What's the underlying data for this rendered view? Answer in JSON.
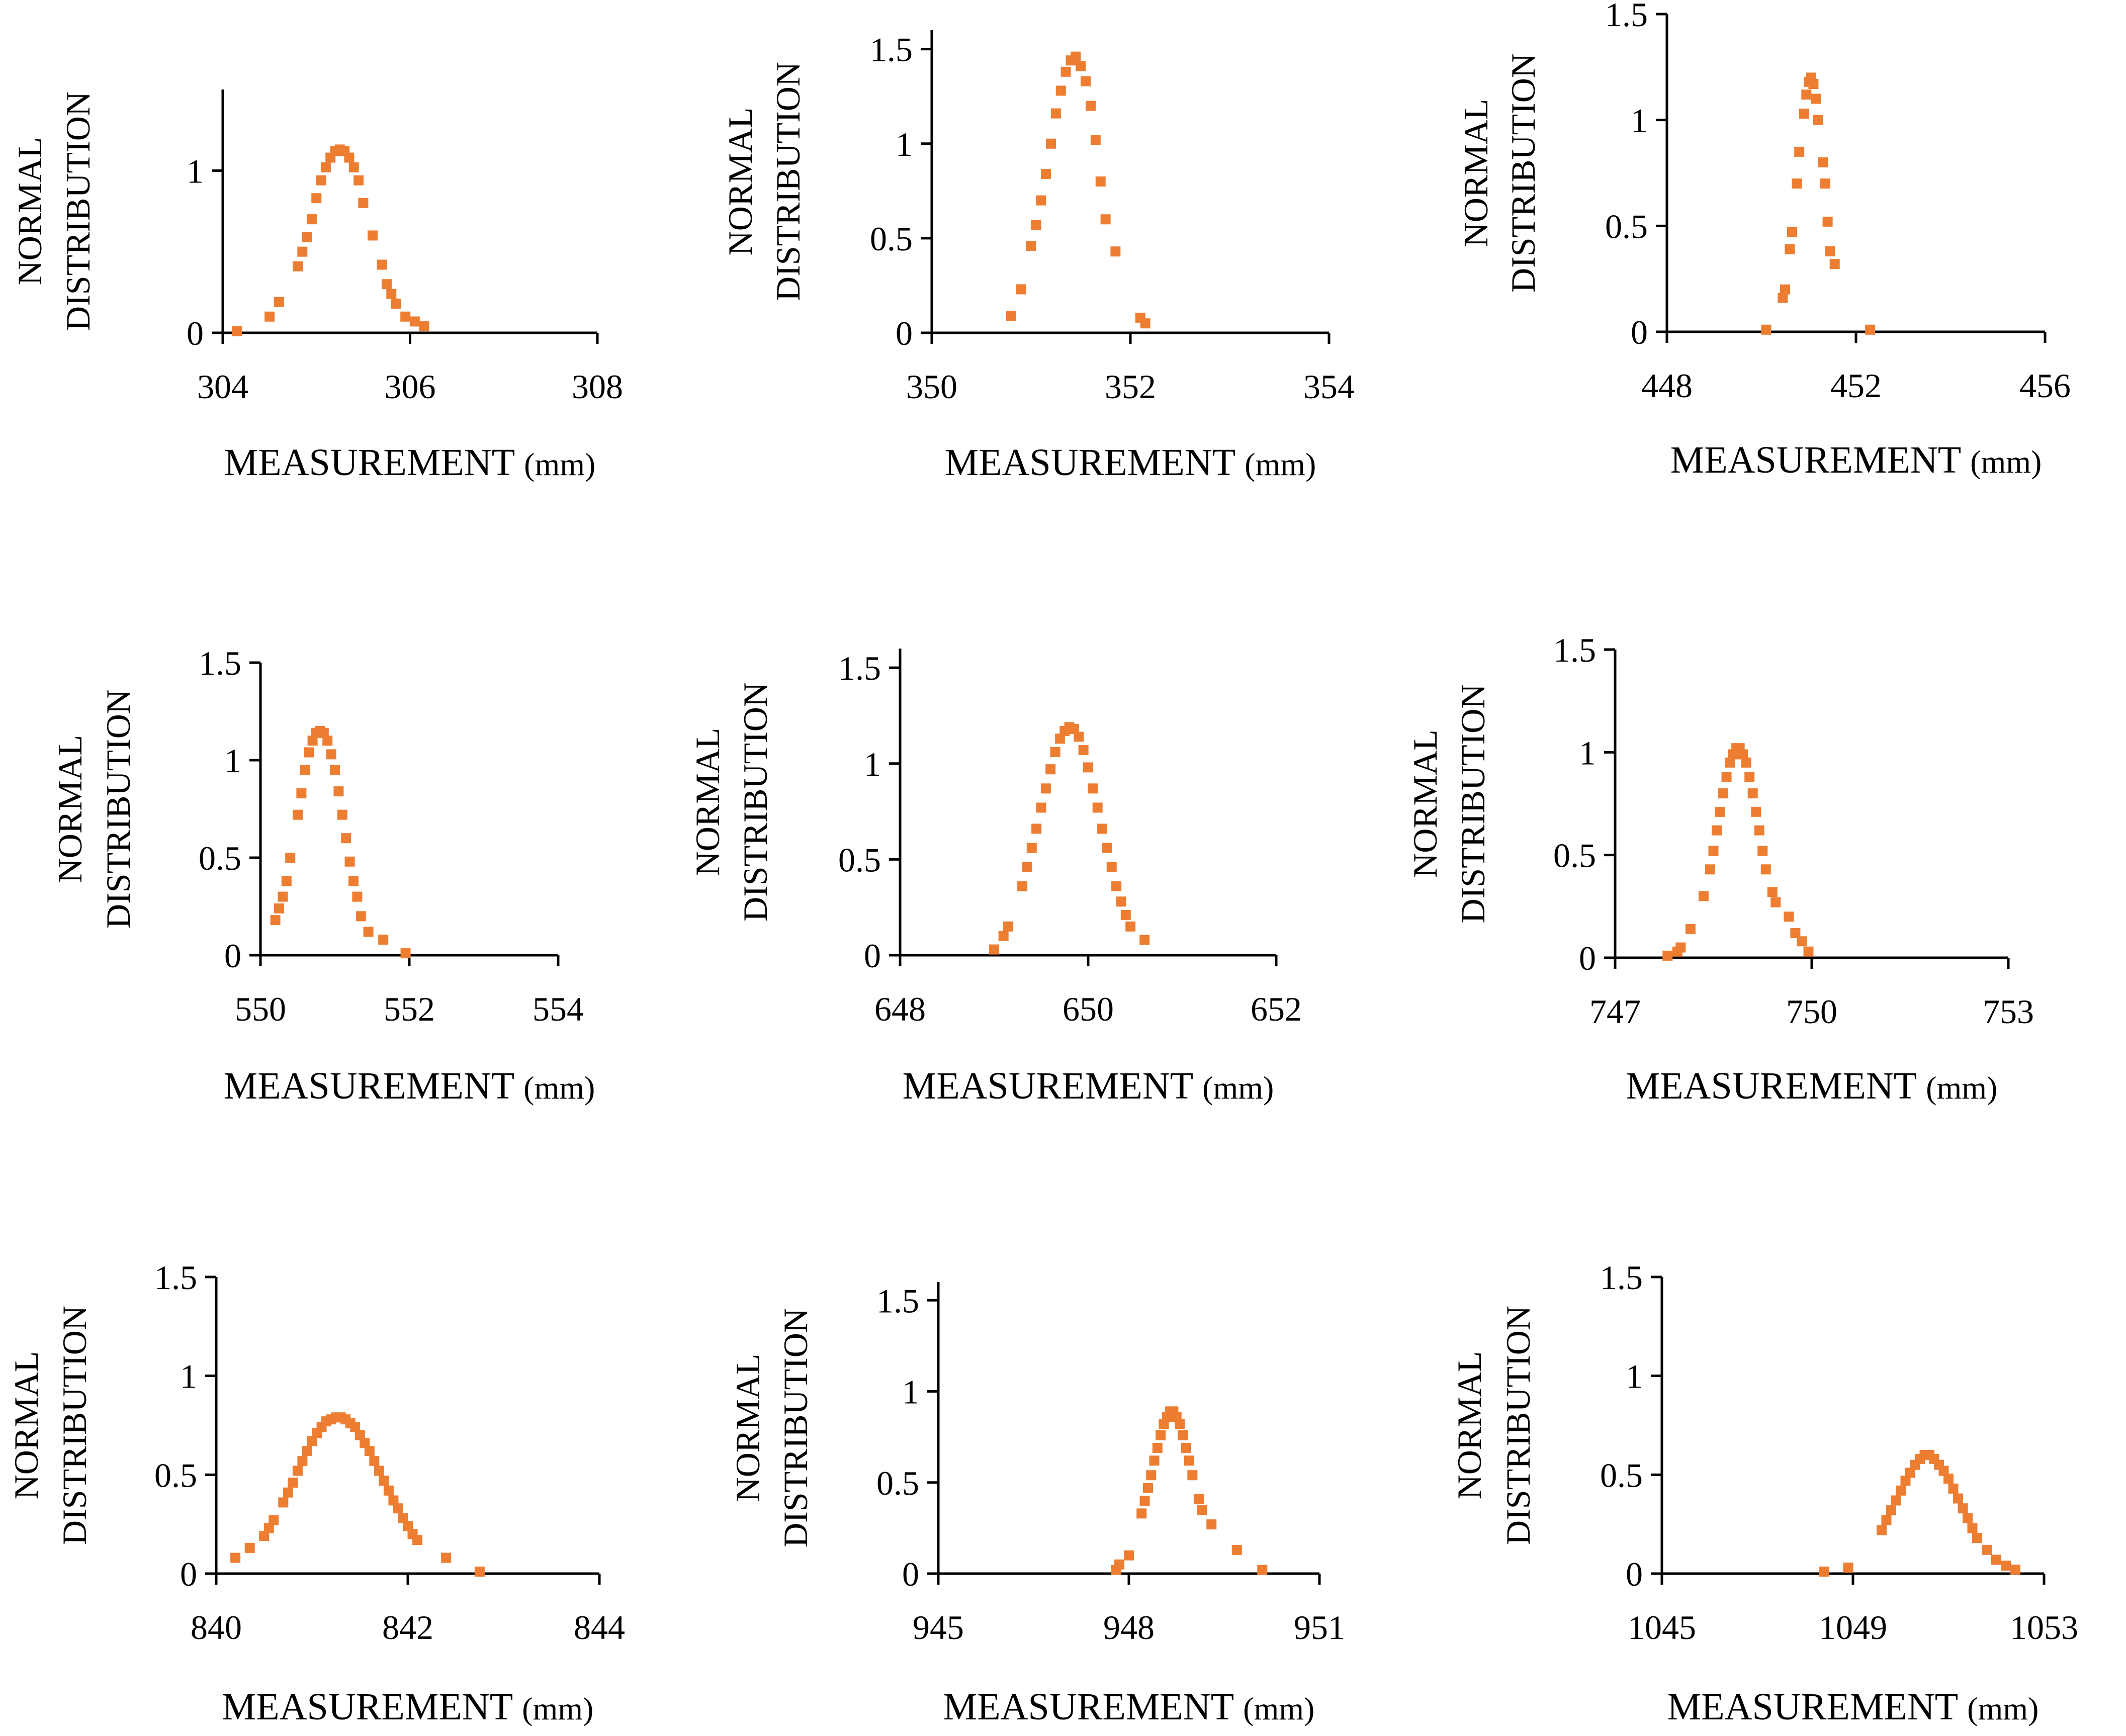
{
  "marker_color": "#ED7D31",
  "chart_data": [
    {
      "type": "scatter",
      "xlabel": "MEASUREMENT",
      "xunit": "(mm)",
      "ylabel": [
        "NORMAL",
        "DISTRIBUTION"
      ],
      "xlim": [
        304,
        308
      ],
      "xticks": [
        304,
        306,
        308
      ],
      "xtick_labels": [
        "304",
        "306",
        "308"
      ],
      "ylim": [
        0,
        1.5
      ],
      "yticks": [
        0,
        1
      ],
      "ytick_labels": [
        "0",
        "1"
      ],
      "x": [
        304.15,
        304.5,
        304.6,
        304.8,
        304.85,
        304.9,
        304.95,
        305.0,
        305.05,
        305.1,
        305.15,
        305.2,
        305.25,
        305.3,
        305.35,
        305.4,
        305.45,
        305.5,
        305.6,
        305.7,
        305.75,
        305.8,
        305.85,
        305.95,
        306.05,
        306.15
      ],
      "y": [
        0.01,
        0.1,
        0.19,
        0.41,
        0.5,
        0.59,
        0.7,
        0.83,
        0.94,
        1.02,
        1.08,
        1.12,
        1.13,
        1.12,
        1.08,
        1.02,
        0.94,
        0.8,
        0.6,
        0.42,
        0.3,
        0.24,
        0.18,
        0.1,
        0.07,
        0.04
      ]
    },
    {
      "type": "scatter",
      "xlabel": "MEASUREMENT",
      "xunit": "(mm)",
      "ylabel": [
        "NORMAL",
        "DISTRIBUTION"
      ],
      "xlim": [
        350,
        354
      ],
      "xticks": [
        350,
        352,
        354
      ],
      "xtick_labels": [
        "350",
        "352",
        "354"
      ],
      "ylim": [
        0,
        1.6
      ],
      "yticks": [
        0,
        0.5,
        1,
        1.5
      ],
      "ytick_labels": [
        "0",
        "0.5",
        "1",
        "1.5"
      ],
      "x": [
        350.8,
        350.9,
        351.0,
        351.05,
        351.1,
        351.15,
        351.2,
        351.25,
        351.3,
        351.35,
        351.4,
        351.45,
        351.5,
        351.55,
        351.6,
        351.65,
        351.7,
        351.75,
        351.85,
        352.1,
        352.15
      ],
      "y": [
        0.09,
        0.23,
        0.46,
        0.57,
        0.7,
        0.84,
        1.0,
        1.16,
        1.28,
        1.38,
        1.44,
        1.46,
        1.41,
        1.33,
        1.2,
        1.02,
        0.8,
        0.6,
        0.43,
        0.08,
        0.05
      ]
    },
    {
      "type": "scatter",
      "xlabel": "MEASUREMENT",
      "xunit": "(mm)",
      "ylabel": [
        "NORMAL",
        "DISTRIBUTION"
      ],
      "xlim": [
        448,
        456
      ],
      "xticks": [
        448,
        452,
        456
      ],
      "xtick_labels": [
        "448",
        "452",
        "456"
      ],
      "ylim": [
        0,
        1.5
      ],
      "yticks": [
        0,
        0.5,
        1,
        1.5
      ],
      "ytick_labels": [
        "0",
        "0.5",
        "1",
        "1.5"
      ],
      "x": [
        450.1,
        450.45,
        450.5,
        450.6,
        450.65,
        450.75,
        450.8,
        450.9,
        450.95,
        451.0,
        451.05,
        451.1,
        451.15,
        451.2,
        451.3,
        451.35,
        451.4,
        451.45,
        451.55,
        452.3
      ],
      "y": [
        0.01,
        0.16,
        0.2,
        0.39,
        0.47,
        0.7,
        0.85,
        1.03,
        1.12,
        1.18,
        1.2,
        1.17,
        1.1,
        1.0,
        0.8,
        0.7,
        0.52,
        0.38,
        0.32,
        0.01
      ]
    },
    {
      "type": "scatter",
      "xlabel": "MEASUREMENT",
      "xunit": "(mm)",
      "ylabel": [
        "NORMAL",
        "DISTRIBUTION"
      ],
      "xlim": [
        550,
        554
      ],
      "xticks": [
        550,
        552,
        554
      ],
      "xtick_labels": [
        "550",
        "552",
        "554"
      ],
      "ylim": [
        0,
        1.5
      ],
      "yticks": [
        0,
        0.5,
        1,
        1.5
      ],
      "ytick_labels": [
        "0",
        "0.5",
        "1",
        "1.5"
      ],
      "x": [
        550.2,
        550.25,
        550.3,
        550.35,
        550.4,
        550.5,
        550.55,
        550.6,
        550.65,
        550.7,
        550.75,
        550.8,
        550.85,
        550.9,
        550.95,
        551.0,
        551.05,
        551.1,
        551.15,
        551.2,
        551.25,
        551.3,
        551.35,
        551.45,
        551.65,
        551.95
      ],
      "y": [
        0.18,
        0.24,
        0.3,
        0.38,
        0.5,
        0.72,
        0.83,
        0.95,
        1.04,
        1.1,
        1.14,
        1.15,
        1.14,
        1.1,
        1.03,
        0.95,
        0.84,
        0.72,
        0.6,
        0.48,
        0.38,
        0.3,
        0.2,
        0.12,
        0.08,
        0.01
      ]
    },
    {
      "type": "scatter",
      "xlabel": "MEASUREMENT",
      "xunit": "(mm)",
      "ylabel": [
        "NORMAL",
        "DISTRIBUTION"
      ],
      "xlim": [
        648,
        652
      ],
      "xticks": [
        648,
        650,
        652
      ],
      "xtick_labels": [
        "648",
        "650",
        "652"
      ],
      "ylim": [
        0,
        1.6
      ],
      "yticks": [
        0,
        0.5,
        1,
        1.5
      ],
      "ytick_labels": [
        "0",
        "0.5",
        "1",
        "1.5"
      ],
      "x": [
        649.0,
        649.1,
        649.15,
        649.3,
        649.35,
        649.4,
        649.45,
        649.5,
        649.55,
        649.6,
        649.65,
        649.7,
        649.75,
        649.8,
        649.85,
        649.9,
        649.95,
        650.0,
        650.05,
        650.1,
        650.15,
        650.2,
        650.25,
        650.3,
        650.35,
        650.4,
        650.45,
        650.6
      ],
      "y": [
        0.03,
        0.1,
        0.15,
        0.36,
        0.46,
        0.56,
        0.66,
        0.77,
        0.87,
        0.97,
        1.06,
        1.13,
        1.17,
        1.19,
        1.18,
        1.14,
        1.07,
        0.98,
        0.87,
        0.77,
        0.66,
        0.56,
        0.46,
        0.36,
        0.28,
        0.21,
        0.15,
        0.08
      ]
    },
    {
      "type": "scatter",
      "xlabel": "MEASUREMENT",
      "xunit": "(mm)",
      "ylabel": [
        "NORMAL",
        "DISTRIBUTION"
      ],
      "xlim": [
        747,
        753
      ],
      "xticks": [
        747,
        750,
        753
      ],
      "xtick_labels": [
        "747",
        "750",
        "753"
      ],
      "ylim": [
        0,
        1.5
      ],
      "yticks": [
        0,
        0.5,
        1,
        1.5
      ],
      "ytick_labels": [
        "0",
        "0.5",
        "1",
        "1.5"
      ],
      "x": [
        747.8,
        747.95,
        748.0,
        748.15,
        748.35,
        748.45,
        748.5,
        748.55,
        748.6,
        748.65,
        748.7,
        748.75,
        748.8,
        748.85,
        748.9,
        748.95,
        749.0,
        749.05,
        749.1,
        749.15,
        749.2,
        749.25,
        749.3,
        749.4,
        749.45,
        749.65,
        749.75,
        749.85,
        749.95
      ],
      "y": [
        0.01,
        0.03,
        0.05,
        0.14,
        0.3,
        0.43,
        0.52,
        0.62,
        0.71,
        0.8,
        0.88,
        0.95,
        0.99,
        1.02,
        1.02,
        0.99,
        0.95,
        0.88,
        0.8,
        0.71,
        0.62,
        0.52,
        0.43,
        0.32,
        0.27,
        0.2,
        0.12,
        0.08,
        0.03
      ]
    },
    {
      "type": "scatter",
      "xlabel": "MEASUREMENT",
      "xunit": "(mm)",
      "ylabel": [
        "NORMAL",
        "DISTRIBUTION"
      ],
      "xlim": [
        840,
        844
      ],
      "xticks": [
        840,
        842,
        844
      ],
      "xtick_labels": [
        "840",
        "842",
        "844"
      ],
      "ylim": [
        0,
        1.5
      ],
      "yticks": [
        0,
        0.5,
        1,
        1.5
      ],
      "ytick_labels": [
        "0",
        "0.5",
        "1",
        "1.5"
      ],
      "x": [
        840.2,
        840.35,
        840.5,
        840.55,
        840.6,
        840.7,
        840.75,
        840.8,
        840.85,
        840.9,
        840.95,
        841.0,
        841.05,
        841.1,
        841.15,
        841.2,
        841.25,
        841.3,
        841.35,
        841.4,
        841.45,
        841.5,
        841.55,
        841.6,
        841.65,
        841.7,
        841.75,
        841.8,
        841.85,
        841.9,
        841.95,
        842.0,
        842.05,
        842.1,
        842.4,
        842.75
      ],
      "y": [
        0.08,
        0.13,
        0.19,
        0.23,
        0.27,
        0.36,
        0.41,
        0.46,
        0.52,
        0.57,
        0.62,
        0.67,
        0.71,
        0.74,
        0.77,
        0.78,
        0.79,
        0.79,
        0.78,
        0.76,
        0.74,
        0.7,
        0.66,
        0.62,
        0.57,
        0.52,
        0.47,
        0.42,
        0.37,
        0.33,
        0.28,
        0.24,
        0.2,
        0.17,
        0.08,
        0.01
      ]
    },
    {
      "type": "scatter",
      "xlabel": "MEASUREMENT",
      "xunit": "(mm)",
      "ylabel": [
        "NORMAL",
        "DISTRIBUTION"
      ],
      "xlim": [
        945,
        951
      ],
      "xticks": [
        945,
        948,
        951
      ],
      "xtick_labels": [
        "945",
        "948",
        "951"
      ],
      "ylim": [
        0,
        1.6
      ],
      "yticks": [
        0,
        0.5,
        1,
        1.5
      ],
      "ytick_labels": [
        "0",
        "0.5",
        "1",
        "1.5"
      ],
      "x": [
        947.8,
        947.85,
        948.0,
        948.2,
        948.25,
        948.3,
        948.35,
        948.4,
        948.45,
        948.5,
        948.55,
        948.6,
        948.65,
        948.7,
        948.75,
        948.8,
        948.85,
        948.9,
        948.95,
        949.0,
        949.1,
        949.15,
        949.3,
        949.7,
        950.1
      ],
      "y": [
        0.02,
        0.05,
        0.1,
        0.33,
        0.4,
        0.47,
        0.54,
        0.62,
        0.69,
        0.76,
        0.82,
        0.86,
        0.89,
        0.89,
        0.86,
        0.82,
        0.76,
        0.69,
        0.62,
        0.54,
        0.41,
        0.35,
        0.27,
        0.13,
        0.02
      ]
    },
    {
      "type": "scatter",
      "xlabel": "MEASUREMENT",
      "xunit": "(mm)",
      "ylabel": [
        "NORMAL",
        "DISTRIBUTION"
      ],
      "xlim": [
        1045,
        1053
      ],
      "xticks": [
        1045,
        1049,
        1053
      ],
      "xtick_labels": [
        "1045",
        "1049",
        "1053"
      ],
      "ylim": [
        0,
        1.5
      ],
      "yticks": [
        0,
        0.5,
        1,
        1.5
      ],
      "ytick_labels": [
        "0",
        "0.5",
        "1",
        "1.5"
      ],
      "x": [
        1048.4,
        1048.9,
        1049.6,
        1049.7,
        1049.8,
        1049.9,
        1050.0,
        1050.1,
        1050.2,
        1050.3,
        1050.4,
        1050.5,
        1050.6,
        1050.7,
        1050.8,
        1050.9,
        1051.0,
        1051.1,
        1051.2,
        1051.3,
        1051.4,
        1051.5,
        1051.6,
        1051.8,
        1052.0,
        1052.2,
        1052.4
      ],
      "y": [
        0.01,
        0.03,
        0.22,
        0.27,
        0.32,
        0.37,
        0.42,
        0.47,
        0.51,
        0.55,
        0.58,
        0.6,
        0.6,
        0.58,
        0.55,
        0.52,
        0.48,
        0.43,
        0.38,
        0.33,
        0.28,
        0.23,
        0.18,
        0.12,
        0.07,
        0.04,
        0.02
      ]
    }
  ]
}
